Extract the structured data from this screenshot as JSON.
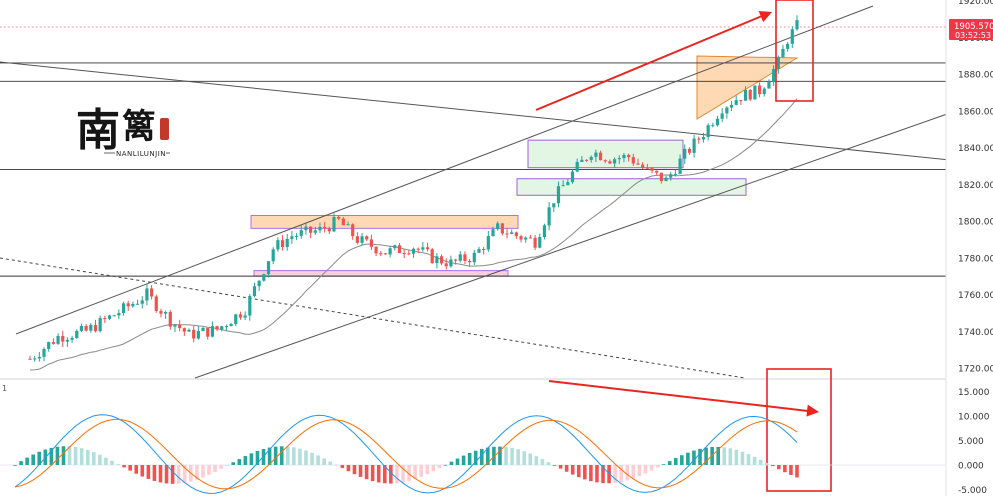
{
  "chart_data": [
    {
      "type": "candlestick",
      "price_axis": {
        "ticks": [
          "1920.000",
          "1900.000",
          "1880.000",
          "1860.000",
          "1840.000",
          "1820.000",
          "1800.000",
          "1780.000",
          "1760.000",
          "1740.000",
          "1720.000"
        ],
        "range": [
          1716,
          1922
        ]
      },
      "last_price_label": {
        "price": "1905.570",
        "countdown": "03:52:53",
        "color": "#f23645"
      },
      "colors": {
        "up": "#26a69a",
        "down": "#ef5350",
        "line": "#707070",
        "ma": "#8a8a8a",
        "arrow": "#e8251f"
      },
      "horizontal_levels": [
        1886,
        1876,
        1828,
        1770
      ],
      "channel_bounds": {
        "start": 1718,
        "end": 1924
      },
      "candles": {
        "count": 165,
        "first_close": 1725,
        "last_close": 1906
      },
      "zones": [
        {
          "name": "consolidation-1",
          "low": 1796,
          "high": 1803,
          "color": "#ffcc99"
        },
        {
          "name": "consolidation-1-floor",
          "low": 1770,
          "high": 1773,
          "color": "#f4c0d0"
        },
        {
          "name": "box-2",
          "low": 1829,
          "high": 1844,
          "color": "#d9f2d9"
        },
        {
          "name": "box-3",
          "low": 1814,
          "high": 1823,
          "color": "#d9f2d9"
        },
        {
          "name": "triangle",
          "color": "#ffcc99"
        }
      ]
    },
    {
      "type": "bar+line",
      "indicator": "MACD",
      "axis": {
        "ticks": [
          "15.000",
          "10.000",
          "5.000",
          "0.000",
          "-5.000"
        ],
        "range": [
          -6,
          17
        ]
      },
      "series": [
        {
          "color": "#2196f3"
        },
        {
          "color": "#ff6d00"
        }
      ],
      "histogram_colors": {
        "pos_strong": "#26a69a",
        "pos_weak": "#b2dfdb",
        "neg_strong": "#ef5350",
        "neg_weak": "#ffcdd2"
      }
    }
  ],
  "logo": {
    "chars": [
      "南",
      "篱"
    ],
    "text": "NANLILUNJIN",
    "seal_color": "#c0392b"
  },
  "pane_marker": "1"
}
